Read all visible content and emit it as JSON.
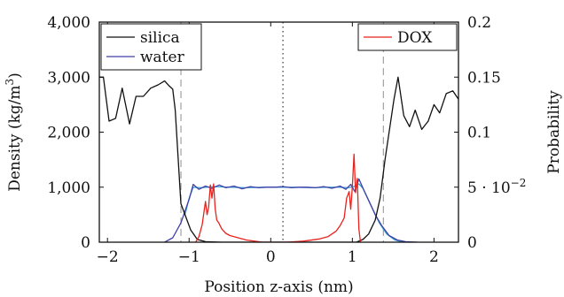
{
  "chart_data": {
    "type": "line",
    "xlabel": "Position z-axis (nm)",
    "ylabel_left": "Density (kg/m³)",
    "ylabel_left_base": "Density (kg/m",
    "ylabel_left_sup": "3",
    "ylabel_left_tail": ")",
    "ylabel_right": "Probability",
    "xlim": [
      -2.1,
      2.3
    ],
    "ylim_left": [
      0,
      4000
    ],
    "ylim_right": [
      0,
      0.2
    ],
    "x_ticks": [
      -2,
      -1,
      0,
      1,
      2
    ],
    "x_tick_labels": [
      "−2",
      "−1",
      "0",
      "1",
      "2"
    ],
    "y_left_ticks": [
      0,
      1000,
      2000,
      3000,
      4000
    ],
    "y_left_tick_labels": [
      "0",
      "1,000",
      "2,000",
      "3,000",
      "4,000"
    ],
    "y_right_ticks": [
      0,
      0.05,
      0.1,
      0.15,
      0.2
    ],
    "y_right_tick_labels": [
      "0",
      "5 · 10⁻²",
      "0.1",
      "0.15",
      "0.2"
    ],
    "y_right_tick_label_base": "5 · 10",
    "y_right_tick_label_exp": "−2",
    "vertical_lines": [
      {
        "x": -1.1,
        "style": "dashed"
      },
      {
        "x": 0.15,
        "style": "dotted"
      },
      {
        "x": 1.38,
        "style": "dashed"
      }
    ],
    "legends": [
      {
        "position": "top-left",
        "entries": [
          {
            "name": "silica",
            "color": "#111111"
          },
          {
            "name": "water",
            "color": "#3f3fa8"
          }
        ]
      },
      {
        "position": "top-right",
        "entries": [
          {
            "name": "DOX",
            "color": "#e8231e"
          }
        ]
      }
    ],
    "series": [
      {
        "name": "silica",
        "axis": "left",
        "color": "#111111",
        "x": [
          -2.1,
          -2.05,
          -1.98,
          -1.9,
          -1.82,
          -1.73,
          -1.65,
          -1.56,
          -1.47,
          -1.38,
          -1.3,
          -1.25,
          -1.2,
          -1.17,
          -1.1,
          -1.05,
          -0.98,
          -0.9,
          -0.8,
          -0.6,
          -0.2,
          0.2,
          0.6,
          0.9,
          1.05,
          1.13,
          1.2,
          1.28,
          1.34,
          1.4,
          1.46,
          1.51,
          1.56,
          1.63,
          1.7,
          1.77,
          1.85,
          1.93,
          2.0,
          2.07,
          2.15,
          2.23,
          2.3
        ],
        "y": [
          3000,
          3000,
          2200,
          2250,
          2800,
          2150,
          2650,
          2650,
          2800,
          2860,
          2930,
          2850,
          2780,
          2400,
          700,
          500,
          220,
          50,
          10,
          0,
          0,
          0,
          0,
          0,
          0,
          50,
          150,
          400,
          800,
          1500,
          2100,
          2600,
          3000,
          2300,
          2100,
          2400,
          2050,
          2200,
          2500,
          2350,
          2700,
          2750,
          2600
        ]
      },
      {
        "name": "water",
        "axis": "left",
        "color": "#3f3fa8",
        "x": [
          -1.3,
          -1.2,
          -1.1,
          -1.0,
          -0.95,
          -0.88,
          -0.8,
          -0.72,
          -0.63,
          -0.55,
          -0.45,
          -0.35,
          -0.25,
          -0.15,
          -0.05,
          0.05,
          0.15,
          0.25,
          0.35,
          0.45,
          0.55,
          0.65,
          0.75,
          0.85,
          0.92,
          0.98,
          1.03,
          1.08,
          1.14,
          1.2,
          1.28,
          1.36,
          1.45,
          1.55,
          1.65,
          1.8
        ],
        "y": [
          0,
          80,
          350,
          780,
          1050,
          960,
          1020,
          980,
          1040,
          990,
          1020,
          970,
          1010,
          990,
          1000,
          1000,
          1010,
          990,
          1000,
          1000,
          990,
          1010,
          980,
          1020,
          960,
          1050,
          920,
          1150,
          950,
          760,
          500,
          300,
          120,
          40,
          10,
          0
        ]
      },
      {
        "name": "DOX",
        "axis": "right",
        "color": "#e8231e",
        "x": [
          -0.92,
          -0.88,
          -0.84,
          -0.8,
          -0.78,
          -0.76,
          -0.74,
          -0.72,
          -0.7,
          -0.68,
          -0.66,
          -0.64,
          -0.6,
          -0.55,
          -0.5,
          -0.4,
          -0.3,
          -0.2,
          -0.1,
          0.0,
          0.2,
          0.4,
          0.6,
          0.7,
          0.8,
          0.85,
          0.9,
          0.93,
          0.96,
          0.98,
          1.0,
          1.02,
          1.04,
          1.06,
          1.08,
          1.1
        ],
        "y": [
          0,
          0.005,
          0.016,
          0.037,
          0.025,
          0.032,
          0.052,
          0.04,
          0.053,
          0.03,
          0.02,
          0.018,
          0.012,
          0.008,
          0.006,
          0.004,
          0.002,
          0.001,
          0.0,
          0.0,
          0.0,
          0.001,
          0.003,
          0.005,
          0.01,
          0.015,
          0.022,
          0.04,
          0.046,
          0.03,
          0.05,
          0.08,
          0.045,
          0.058,
          0.012,
          0.0
        ]
      },
      {
        "name": "",
        "axis": "left",
        "color": "#38a4d6",
        "x": [
          -1.05,
          -1.0,
          -0.95,
          -0.85,
          -0.7,
          -0.5,
          -0.3,
          -0.1,
          0.1,
          0.3,
          0.5,
          0.7,
          0.85,
          0.95,
          1.02,
          1.08,
          1.13,
          1.18,
          1.25,
          1.33,
          1.42,
          1.52,
          1.62
        ],
        "y": [
          500,
          800,
          1000,
          990,
          1010,
          1000,
          990,
          1000,
          1000,
          1000,
          990,
          1000,
          1000,
          990,
          1010,
          1060,
          980,
          820,
          600,
          350,
          150,
          40,
          0
        ]
      }
    ]
  }
}
